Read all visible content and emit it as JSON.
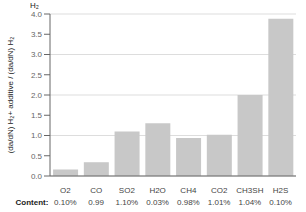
{
  "chart_data": {
    "type": "bar",
    "y_label": "(da/dN) H₂+ additive / (da/dN) H₂",
    "annotations": [
      "H₂"
    ],
    "categories": [
      "O2",
      "CO",
      "SO2",
      "H2O",
      "CH4",
      "CO2",
      "CH3SH",
      "H2S"
    ],
    "values": [
      0.16,
      0.34,
      1.1,
      1.3,
      0.94,
      1.02,
      2.0,
      3.88
    ],
    "content_label": "Content:",
    "contents": [
      "0.10%",
      "0.99",
      "1.10%",
      "0.03%",
      "0.98%",
      "1.01%",
      "1.04%",
      "0.10%"
    ],
    "color": "#c8c8c8",
    "ylim": [
      0,
      4.0
    ],
    "yticks": [
      {
        "value": 0,
        "label": "0.0"
      },
      0.5,
      {
        "value": 1,
        "label": "1.0"
      },
      1.5,
      {
        "value": 2,
        "label": "2.0"
      },
      2.5,
      {
        "value": 3,
        "label": "3.0"
      },
      3.5,
      {
        "value": 4,
        "label": "4.0"
      }
    ],
    "grid": true
  }
}
